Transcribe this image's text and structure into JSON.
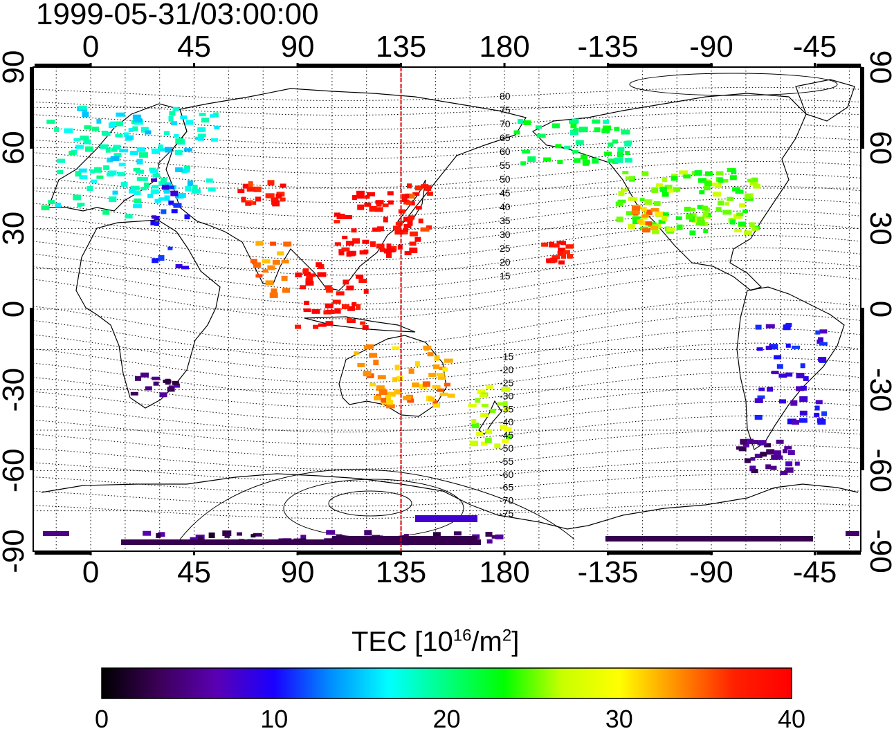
{
  "timestamp": "1999-05-31/03:00:00",
  "map": {
    "lon_ticks_labels": [
      "0",
      "45",
      "90",
      "135",
      "180",
      "-135",
      "-90",
      "-45"
    ],
    "lat_ticks_labels": [
      "90",
      "60",
      "30",
      "0",
      "-30",
      "-60",
      "-90"
    ],
    "lon_range": [
      -25,
      335
    ],
    "lat_range": [
      -90,
      90
    ],
    "grid": "dotted 15 degree",
    "meridian_marker": {
      "lon": 135,
      "color": "#e00000"
    },
    "contour_labels_north": [
      "80",
      "75",
      "70",
      "65",
      "60",
      "55",
      "50",
      "45",
      "40",
      "35",
      "30",
      "25",
      "20",
      "15"
    ],
    "contour_labels_south": [
      "-15",
      "-20",
      "-25",
      "-30",
      "-35",
      "-40",
      "-45",
      "-50",
      "-55",
      "-60",
      "-65",
      "-70",
      "-75"
    ]
  },
  "colorbar": {
    "title_prefix": "TEC  [10",
    "title_exp": "16",
    "title_mid": "/m",
    "title_exp2": "2",
    "title_suffix": "]",
    "min": 0,
    "max": 40,
    "tick_labels": [
      "0",
      "10",
      "20",
      "30",
      "40"
    ],
    "colormap": [
      "#000000",
      "#3c0058",
      "#5a00b4",
      "#1a00ff",
      "#0090ff",
      "#00ffff",
      "#00ff7f",
      "#00ff00",
      "#c8ff00",
      "#ffff00",
      "#ff9000",
      "#ff2000",
      "#ff0000"
    ]
  },
  "chart_data": {
    "type": "scatter",
    "title": "1999-05-31/03:00:00",
    "value_name": "TEC",
    "value_unit": "10^16/m^2",
    "points": [
      {
        "region": "europe",
        "lon": 10,
        "lat": 52,
        "tec": 18
      },
      {
        "region": "europe",
        "lon": 25,
        "lat": 58,
        "tec": 17
      },
      {
        "region": "east-mediterranean",
        "lon": 35,
        "lat": 33,
        "tec": 10
      },
      {
        "region": "central-asia",
        "lon": 75,
        "lat": 43,
        "tec": 38
      },
      {
        "region": "india",
        "lon": 78,
        "lat": 15,
        "tec": 34
      },
      {
        "region": "east-asia",
        "lon": 125,
        "lat": 32,
        "tec": 39
      },
      {
        "region": "japan",
        "lon": 140,
        "lat": 38,
        "tec": 37
      },
      {
        "region": "southeast-asia",
        "lon": 105,
        "lat": 5,
        "tec": 39
      },
      {
        "region": "hawaii",
        "lon": -157,
        "lat": 21,
        "tec": 39
      },
      {
        "region": "north-america",
        "lon": -100,
        "lat": 40,
        "tec": 25
      },
      {
        "region": "alaska",
        "lon": -150,
        "lat": 62,
        "tec": 21
      },
      {
        "region": "california",
        "lon": -118,
        "lat": 34,
        "tec": 33
      },
      {
        "region": "south-america",
        "lon": -55,
        "lat": -25,
        "tec": 9
      },
      {
        "region": "patagonia",
        "lon": -65,
        "lat": -55,
        "tec": 5
      },
      {
        "region": "south-africa",
        "lon": 28,
        "lat": -28,
        "tec": 5
      },
      {
        "region": "australia",
        "lon": 135,
        "lat": -25,
        "tec": 33
      },
      {
        "region": "new-zealand",
        "lon": 174,
        "lat": -40,
        "tec": 27
      },
      {
        "region": "antarctica",
        "lon": 100,
        "lat": -85,
        "tec": 4
      }
    ]
  }
}
